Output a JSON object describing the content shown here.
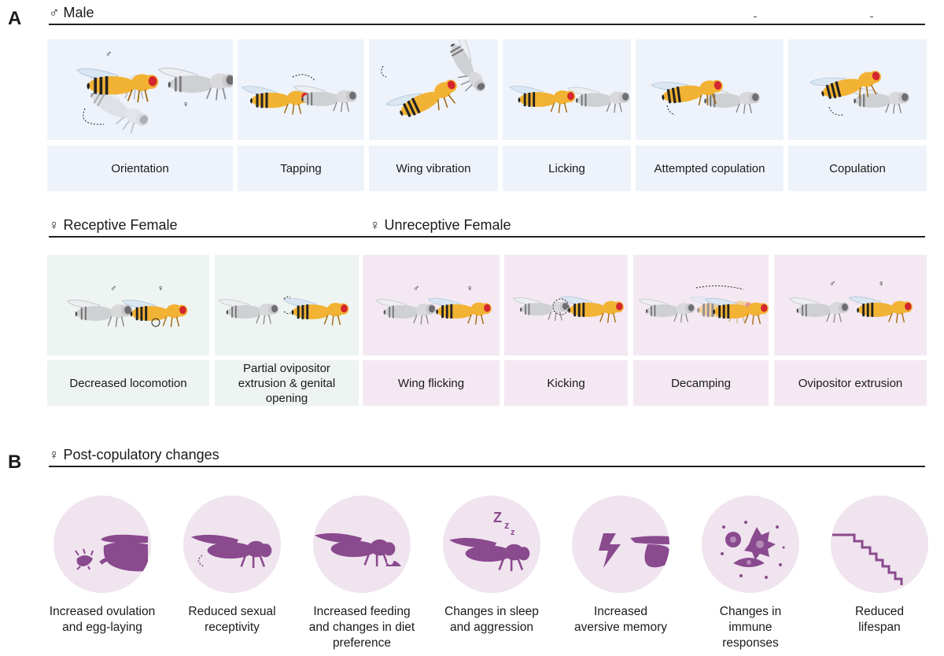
{
  "panel_a": {
    "letter": "A",
    "male_heading": "♂ Male",
    "male_behaviors": [
      "Orientation",
      "Tapping",
      "Wing vibration",
      "Licking",
      "Attempted copulation",
      "Copulation"
    ],
    "receptive_heading": "♀ Receptive Female",
    "unreceptive_heading": "♀ Unreceptive Female",
    "receptive_behaviors": [
      "Decreased locomotion",
      "Partial ovipositor extrusion & genital opening"
    ],
    "unreceptive_behaviors": [
      "Wing flicking",
      "Kicking",
      "Decamping",
      "Ovipositor extrusion"
    ],
    "sex_symbols": {
      "male": "♂",
      "female": "♀"
    }
  },
  "panel_b": {
    "letter": "B",
    "heading": "♀ Post-copulatory changes",
    "changes": [
      {
        "label": "Increased ovulation and egg-laying",
        "icon": "egg-laying-fly-icon"
      },
      {
        "label": "Reduced sexual receptivity",
        "icon": "fly-ovipositor-icon"
      },
      {
        "label": "Increased feeding and changes in diet preference",
        "icon": "feeding-fly-icon"
      },
      {
        "label": "Changes in sleep and aggression",
        "icon": "sleeping-fly-icon"
      },
      {
        "label": "Increased aversive memory",
        "icon": "shock-memory-icon"
      },
      {
        "label": "Changes in immune responses",
        "icon": "immune-cells-icon"
      },
      {
        "label": "Reduced lifespan",
        "icon": "survival-curve-icon"
      }
    ]
  },
  "colors": {
    "male_fly_body": "#f2b233",
    "female_fly_body": "#c9c9cc",
    "fly_eye": "#d3262e",
    "icon_purple": "#8a4a8e",
    "circle_bg": "#f0e4ef",
    "male_panel_bg": "#eef3fb",
    "receptive_panel_bg": "#eef4f1",
    "unreceptive_panel_bg": "#f4e9f2"
  }
}
